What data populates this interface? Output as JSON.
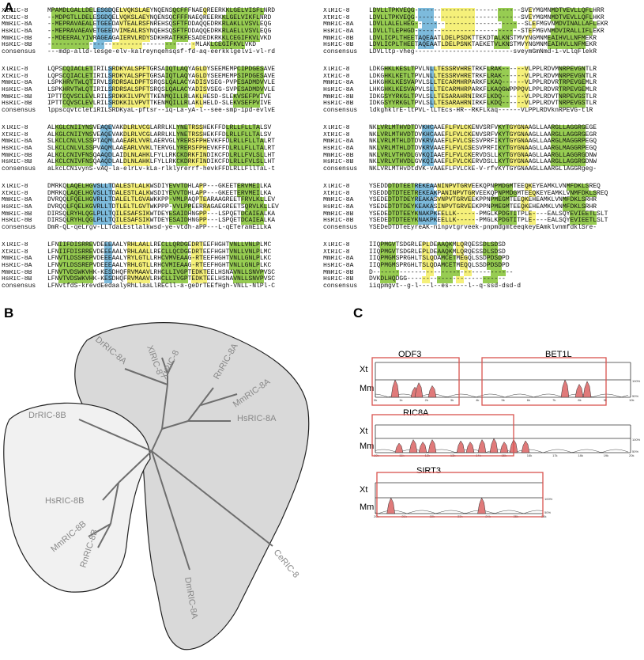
{
  "panels": {
    "a": "A",
    "b": "B",
    "c": "C"
  },
  "colors": {
    "green": "#8cc63f",
    "yellow": "#f4ee6c",
    "blue": "#6fb4d8",
    "lightgray": "#efefef",
    "gray": "#d5d5d5",
    "red": "#d9534f",
    "redfill": "#e07a7a"
  },
  "alignment": {
    "blocks": [
      {
        "rows": [
          {
            "name": "XlRIC-8",
            "seq": "MPAMDLGALLDELESGDQELVQKSLAEYNQENSQCFFFNAEQREERKKLGELVISFLNRD"
          },
          {
            "name": "XtRIC-8",
            "seq": "--MDPGTLLDELESGDQELVQKSLAEYNQENSQCFFFNAEQREERKKLGELVIKFLNRD"
          },
          {
            "name": "MmRIC-8A",
            "seq": "--MEPRAVAEALETGEEDAVTEALRSFNREHSQSFTFDDAQQEDRKRLAKLLVSVLEQG"
          },
          {
            "name": "HsRIC-8A",
            "seq": "--MEPRAVAEAVETGEEDVIMEALRSYNQEHSQSFTFDDAQQEDRKRLAELLVSVLEQG"
          },
          {
            "name": "MmRIC-8B",
            "seq": "--MDEERALYIVRAGEAGAIERVLRDYSDKHRATFKFESADEDKRKKLCEGIFKVLVKD"
          },
          {
            "name": "HsRIC-8B",
            "seq": "---------------------------------------MLAKLCEGIFKVLVKD"
          },
          {
            "name": "consensus",
            "seq": "---mdp-alld-lesge-elv-kalreynqehsqsf-fd-aq-eerkklgelvi-vl-rd"
          }
        ]
      },
      {
        "rows": [
          {
            "name": "XlRIC-8",
            "seq": "LQPSCQIACLETIRILSRDKYALSPFTGRSAIQTLAQYAGLDYSEEMEMPCIPDGESAVE"
          },
          {
            "name": "XtRIC-8",
            "seq": "LQPSCQIACLETIRILSRDKYALSPFTGRSAIQTLAQYAGLDYSEEMEMPSIPDGESAVE"
          },
          {
            "name": "MmRIC-8A",
            "seq": "LSPKHRVTWLQTIRVLSRDRSALDPFTSRQSLQALACYADISVSEG-PVPESADMDVVLE"
          },
          {
            "name": "HsRIC-8A",
            "seq": "LSPKHRVTWLQTIRILSRDRSALSPFTSRQSLQALACYADISVSEG-SVPESADMDVVLE"
          },
          {
            "name": "MmRIC-8B",
            "seq": "IPTTCQVSCLEVLRILSRDKKILVPVTTKENMQILLRLAKLHESD-SLEKVSEFPVIVE"
          },
          {
            "name": "HsRIC-8B",
            "seq": "IPTTCQVSCLEVLRILSRDKKILVPVTTKENMQILLRLAKLHELD-SLEKVSEFPVIVE"
          },
          {
            "name": "consensus",
            "seq": "lppscqvtcletiRILSRDKyaL-pftsr--iq-La-yA-l--see-smp-ipd-evlvE"
          }
        ]
      },
      {
        "rows": [
          {
            "name": "XlRIC-8",
            "seq": "ALKGLCNIIYNSVEAQEVAKDLRLVCGLARRLKLYNETRSSHEKFFDLRLLFLLTALSV"
          },
          {
            "name": "XtRIC-8",
            "seq": "ALKGLCNIIYNSVEAQEVAKDLRLVCGLARRLKLYNETRSSHEKFFDLRLLFLLTALSV"
          },
          {
            "name": "MmRIC-8A",
            "seq": "SLKCLCNLVLSSPTAQMLAAEARLVVRLAERVGLYRERSFPHEVKFFDLRLLFLLTALRT"
          },
          {
            "name": "HsRIC-8A",
            "seq": "SLKCLCNLVLSSPVAQMLAAEARLVVKLTERVGLYRERSFPHEVKFFDLRLLFLLTALRT"
          },
          {
            "name": "MmRIC-8B",
            "seq": "ALKCLCNIVFNSQAAQDLAIDLNLAHKLFYLLRKCKDRKFINDIKCFDLRLLFVLSLLHT"
          },
          {
            "name": "HsRIC-8B",
            "seq": "ALKCLCNIVFNSQAAQDLALDLNLAHKLFYLLRKCKDRKFINDIKCFDLRLLFVLSLLHT"
          },
          {
            "name": "consensus",
            "seq": "aLkcLCNivynS-vAQ-la-elrLv-kLa-rlklyrerrf-hevkFFDLRLLFllTaL-t"
          }
        ]
      },
      {
        "rows": [
          {
            "name": "XlRIC-8",
            "seq": "DMRKQLAQELHGVSLLTDALESTLALKWSDIYEVVTDHLAPP---GKEETERVMEILKA"
          },
          {
            "name": "XtRIC-8",
            "seq": "DMRKQLAQELHGVSLLTDALESTLALKWSDIYEVVTDHLAPP---GKEETERVMEILKA"
          },
          {
            "name": "MmRIC-8A",
            "seq": "DVRQQLFQELHGVRLLTDALELTLGVAWKKPP-VMLPAQPTEARAAGREETFRVLKLLEV"
          },
          {
            "name": "HsRIC-8A",
            "seq": "DVRQQLFQELKGVRLLTDTLELTLGVTWKPPP-VVLPPEERRAGAEGREETSQRVLKLLEV"
          },
          {
            "name": "MmRIC-8B",
            "seq": "DIRSQLRYHLQGLPLLTQILESAFSIKWTDEYESAIDHNGPP---LSPQETDCAIEALKA"
          },
          {
            "name": "HsRIC-8B",
            "seq": "DIRSQLRYHLQGLPLLTQILESAFSIKWTDEYESAIDHNGPP---LSPQETDCAIEALKA"
          },
          {
            "name": "consensus",
            "seq": "DmR-QL-qeLrgv-LLTdaLEstlalkwsd-ye-vtdh-aPP---L-qETeramEiLkA"
          }
        ]
      },
      {
        "rows": [
          {
            "name": "XlRIC-8",
            "seq": "LFNIIFDISRREVDEEEAALYRHLAALLRECLLQRDGEDRTEEFHGHTVNLLVNLPLMC"
          },
          {
            "name": "XtRIC-8",
            "seq": "LFNIIFDISRREVDEEEAALYRHLAALLRECLLQCDGEDRTEEFHGHTVNLLVNLPLMC"
          },
          {
            "name": "MmRIC-8A",
            "seq": "LFNVTLDSSREPVDEEEAALYRYLGTLLRHCVMVEAAG-RTEEFHGHTVNLLGNLPLKC"
          },
          {
            "name": "HsRIC-8A",
            "seq": "LFNVTLDSSREPVDEEEAALYRHLGTLLRHCVMIEAAG-RTEEFHGHTVNLLGNLPLKC"
          },
          {
            "name": "MmRIC-8B",
            "seq": "LFNVTVDSWKVHK-KESDHQFRVMAAVLRHCLLIVGPTEDKTEELHSNAVNLLSNVPVSC"
          },
          {
            "name": "HsRIC-8B",
            "seq": "LFNVTVDSWKVHK-KESDHQFRVMAAVLRHCLLIVGPTEDKTEELHSNAVNLLSNVPVSC"
          },
          {
            "name": "consensus",
            "seq": "LFNvtfdS-krevdEedaalyRhLlaaLlRECll-a-geDrTEEfHgh-VNLL-NlPl-C"
          }
        ]
      },
      {
        "rows": [
          {
            "name": "XlRIC-8",
            "seq": "LDVLLTPKVEQG----------------------------SVEYMGMNMDTVEVLLQFLHRR"
          },
          {
            "name": "XtRIC-8",
            "seq": "LDVLLTPKVEQG----------------------------SVEYMGMNMDTVEVLLQFLHKR"
          },
          {
            "name": "MmRIC-8A",
            "seq": "LDVLLALELHEG-----------------------------SLEFMGVNMDVINALLAFLEKR"
          },
          {
            "name": "HsRIC-8A",
            "seq": "LDVLLTLEPHGD----------------------------STEFMGVNMDVIRALLIFLEKR"
          },
          {
            "name": "MmRIC-8B",
            "seq": "LDVLICPLTHEETAQEAATLDELPSDKTTEKDTALKNSTMVYNGMNMEAIHVLLNFMEKR"
          },
          {
            "name": "HsRIC-8B",
            "seq": "LDVLICPLTHEETAQEAATLDELPSNKTAEKETVLKNSTMVYNGMNMEAIHVLLNFMEKR"
          },
          {
            "name": "consensus",
            "seq": "LDVLltp-vheg--------------------------sveymGmNmd-i-vLlqFlekR"
          }
        ]
      },
      {
        "rows": [
          {
            "name": "XlRIC-8",
            "seq": "LDKGHKLKESLTPVLNLLTESSRVHRETRKFLRAK------VLPPLRDVMNRPEVGNTLR"
          },
          {
            "name": "XtRIC-8",
            "seq": "LDKGHKLKETLTPVLNLLTESSRVHRETRKFLRAK------VLPPLRDVMNRPEVGNTLR"
          },
          {
            "name": "MmRIC-8A",
            "seq": "LHKGHKLKESVAPVLSLLTECARMHRPARKFLKAQ------VLPPLRDVRTRPEVGEMLR"
          },
          {
            "name": "HsRIC-8A",
            "seq": "LHKGHKLKESVAPVLSLLTECARMHRPARKFLKAQGWPPPQVLPPLRDVRTRPEVGEMLR"
          },
          {
            "name": "MmRIC-8B",
            "seq": "IDKGSYYRKGLTPVLSLLTESARAHRNIRKFLKDQ------VLPPLRDVTNRPEVGSTLR"
          },
          {
            "name": "HsRIC-8B",
            "seq": "IDKGSYYRKGLTPVLSLLTESARAHRNIRKFLKDQ------VLPPLRDVTNRPEVGSTLR"
          },
          {
            "name": "consensus",
            "seq": "ldkghklrE-ltPVL-lLTEcs-HR--RKFLkaq------VLPPLRDVknRPEVG-tlR"
          }
        ]
      },
      {
        "rows": [
          {
            "name": "XlRIC-8",
            "seq": "NKLVRLMTHVDTDVKHCAAEFLFVLCKENVSRFVKYTGYGNAAGLLAARGLLAGGRGEGE"
          },
          {
            "name": "XtRIC-8",
            "seq": "NKLVRLMTHVDTDVKHCAAEFLFVLCKENVSRFVKYTGYGNAAGLLAARGLLAGGRGEGR"
          },
          {
            "name": "MmRIC-8A",
            "seq": "NKLVRLMTHLDTDVKRVAAEFLFVLCSESVPRFIKYTGYGNAAGLLAARGLMAGGRPEGQ"
          },
          {
            "name": "HsRIC-8A",
            "seq": "NKLVRLMTHLDTDVKRVAAEFLFVLCSESVPRFIKYTGYGNAAGLLAARGLMAGGRPEGQ"
          },
          {
            "name": "MmRIC-8B",
            "seq": "NKLVRLVTHVDLGVKQIAAEFLFVLCKERVDSLLKYTGYGNAAGLLAARGLLAGGRGDNW"
          },
          {
            "name": "HsRIC-8B",
            "seq": "NKLVRLVTHVDLGVKQIAAEFLFVLCKERVDSLLKYTGYGNAAGLLAARGLLAGGRGDNW"
          },
          {
            "name": "consensus",
            "seq": "NKLVRLMTHvDtdVK-vAAEFLFVLCkE-V-rfvKYTGYGNAAGLLAARGLlAGGRgeg-"
          }
        ]
      },
      {
        "rows": [
          {
            "name": "XlRIC-8",
            "seq": "YSEDDDTDTEETREKEAANINPVTGRVEEKQPNPMDGMTEEQKEYEAMKLVNMFDKLSREQ"
          },
          {
            "name": "XtRIC-8",
            "seq": "YSEDDDTDTEETREKEAKPANINPVTGRVEEKQPNPMDGMTEEQKEYEAMKLVNMFDKLSREQ"
          },
          {
            "name": "MmRIC-8A",
            "seq": "YSEDEDTDTDEYREAKASVNPVTGRVEEKPPNPMEGMTEEQKEHEAMKLVNMFDKLSRHR"
          },
          {
            "name": "HsRIC-8A",
            "seq": "YSEDEDTDTDEYKEAKASINPVTGRVEEKPPNPMEGMTEEQKEHEAMKLVNMFDKLSRHR"
          },
          {
            "name": "MmRIC-8B",
            "seq": "YSEDEDTDTEEYKNAKPKEELLK------PMGLKPDGTITPLE----EALSQYEVIEETLSLT"
          },
          {
            "name": "HsRIC-8B",
            "seq": "YSEDEDTDTEEYKNAKPKEELLK------PMGLKPDGTITPLE----EALSQYEVIEETLSLT"
          },
          {
            "name": "consensus",
            "seq": "YSEDeDTDTeEyreAK-ninpvtgrveek-pnpmdgmteeqkeyEAmklvnmfdklSre-"
          }
        ]
      },
      {
        "rows": [
          {
            "name": "XlRIC-8",
            "seq": "IIQPMGVTSDGRLEPLDEAAQKMLQRQESSDLSDSD"
          },
          {
            "name": "XtRIC-8",
            "seq": "IIQPMGVTSDGRLEPLDEAAQKMLQRQESSDLSDSD"
          },
          {
            "name": "MmRIC-8A",
            "seq": "IIQPMGMSPRGHLTSLQDAMCETMEGQLSSDPDSDPD"
          },
          {
            "name": "HsRIC-8A",
            "seq": "IIQPMGMSPRGHLTSLQDAMCETMEQQLSSDPDSDPD"
          },
          {
            "name": "MmRIC-8B",
            "seq": "D-------------------------------------"
          },
          {
            "name": "HsRIC-8B",
            "seq": "DVKDLHQDGG--------------------------"
          },
          {
            "name": "consensus",
            "seq": "iiqpmgvt--g-l---l--es-----l--q-ssd-dsd-d"
          }
        ]
      }
    ]
  },
  "tree": {
    "labels": [
      "XlRIC-8",
      "XtRIC-8",
      "DrRIC-8A",
      "RnRIC-8A",
      "MmRIC-8A",
      "HsRIC-8A",
      "DrRIC-8B",
      "HsRIC-8B",
      "MmRIC-8B",
      "RnRIC-8B",
      "DmRIC-8A",
      "CeRIC-8"
    ]
  },
  "synteny": {
    "genes": [
      "ODF3",
      "BET1L",
      "RIC8A",
      "SIRT3"
    ],
    "species": [
      "Xt",
      "Mm"
    ],
    "percent_labels": [
      "100%",
      "50%"
    ],
    "axis_ticks_1": [
      "0k",
      "1k",
      "2k",
      "3k",
      "4k",
      "5k",
      "6k",
      "7k",
      "8k",
      "9k",
      "10k"
    ],
    "axis_ticks_2": [
      "10k",
      "11k",
      "12k",
      "13k",
      "14k",
      "15k",
      "16k",
      "17k",
      "18k",
      "19k",
      "20k"
    ],
    "axis_ticks_3": [
      "20k",
      "21k",
      "22k",
      "23k",
      "24k",
      "25k",
      "26k"
    ]
  }
}
